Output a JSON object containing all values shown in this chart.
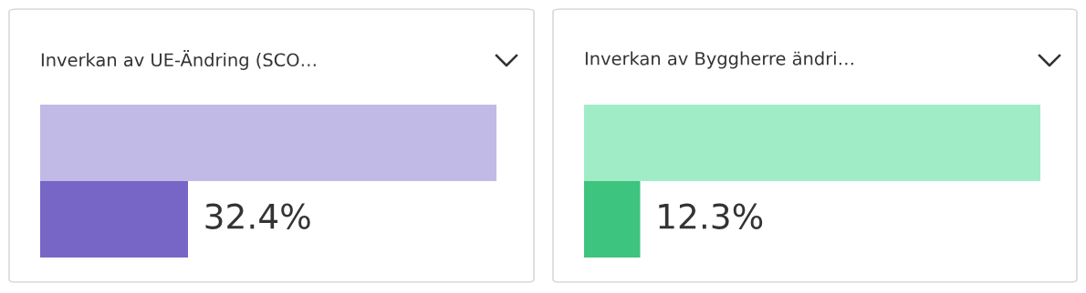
{
  "chart_data": [
    {
      "type": "bar",
      "title": "Inverkan av UE-Ändring (SCO…",
      "orientation": "horizontal",
      "tick_labels": false,
      "xlim": [
        0,
        100
      ],
      "categories": [
        null,
        null
      ],
      "values": [
        100,
        32.4
      ],
      "colors": [
        "#c1bae6",
        "#7766c6"
      ],
      "value_labels": [
        null,
        "32.4%"
      ]
    },
    {
      "type": "bar",
      "title": "Inverkan av Byggherre ändri…",
      "orientation": "horizontal",
      "tick_labels": false,
      "xlim": [
        0,
        100
      ],
      "categories": [
        null,
        null
      ],
      "values": [
        100,
        12.3
      ],
      "colors": [
        "#a0ecc6",
        "#3dc47e"
      ],
      "value_labels": [
        null,
        "12.3%"
      ]
    }
  ]
}
